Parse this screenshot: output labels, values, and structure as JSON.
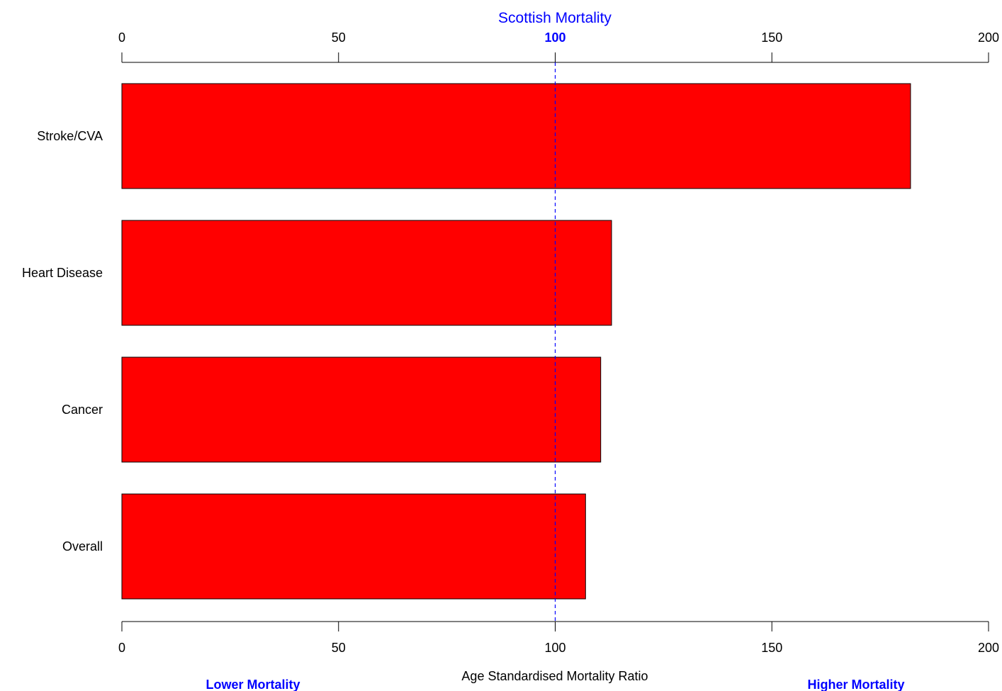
{
  "chart_data": {
    "type": "bar",
    "orientation": "horizontal",
    "categories": [
      "Stroke/CVA",
      "Heart Disease",
      "Cancer",
      "Overall"
    ],
    "values": [
      182,
      113,
      110.5,
      107
    ],
    "xlim": [
      0,
      200
    ],
    "x_ticks": [
      0,
      50,
      100,
      150,
      200
    ],
    "xlabel": "Age Standardised Mortality Ratio",
    "reference": {
      "value": 100,
      "label": "Scottish Mortality",
      "color": "#0000ff",
      "line_style": "dashed"
    },
    "left_annotation": "Lower Mortality",
    "right_annotation": "Higher Mortality",
    "annotation_color": "#0000ff",
    "bar_color": "#ff0000",
    "bar_border_color": "#000000",
    "axes": "top-and-bottom",
    "grid": false,
    "legend": "none"
  }
}
